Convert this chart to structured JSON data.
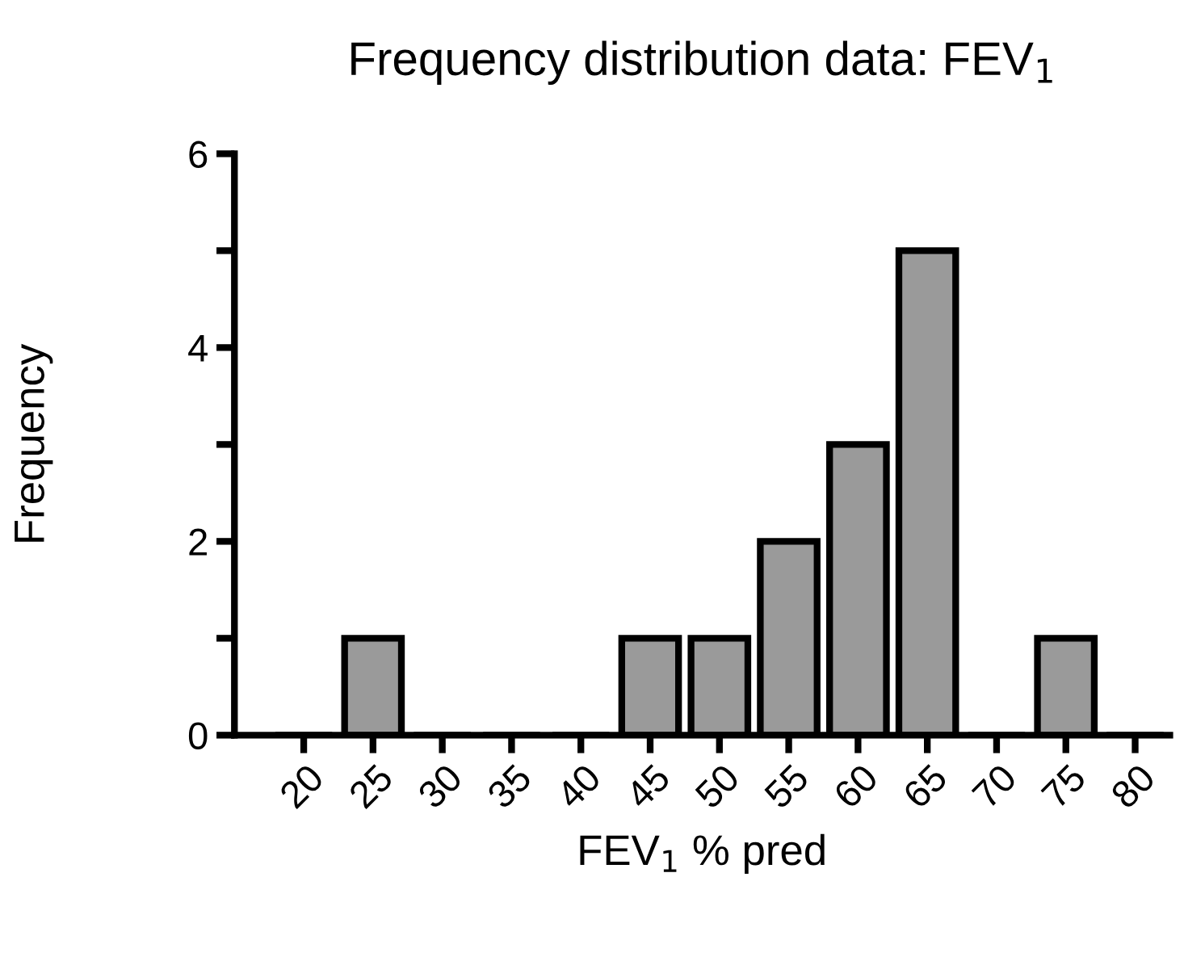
{
  "chart_data": {
    "type": "bar",
    "title": "Frequency distribution data: FEV$_{1}$",
    "xlabel": "FEV$_{1}$ % pred",
    "ylabel": "Frequency",
    "categories": [
      "20",
      "25",
      "30",
      "35",
      "40",
      "45",
      "50",
      "55",
      "60",
      "65",
      "70",
      "75",
      "80"
    ],
    "values": [
      0,
      1,
      0,
      0,
      0,
      1,
      1,
      2,
      3,
      5,
      0,
      1,
      0
    ],
    "color": "#9a9a9a",
    "ylim": [
      0,
      6
    ],
    "yticks": [
      0,
      {
        "value": 1,
        "label": null
      },
      2,
      {
        "value": 3,
        "label": null
      },
      4,
      {
        "value": 5,
        "label": null
      },
      6
    ],
    "grid": false,
    "legend": false
  }
}
